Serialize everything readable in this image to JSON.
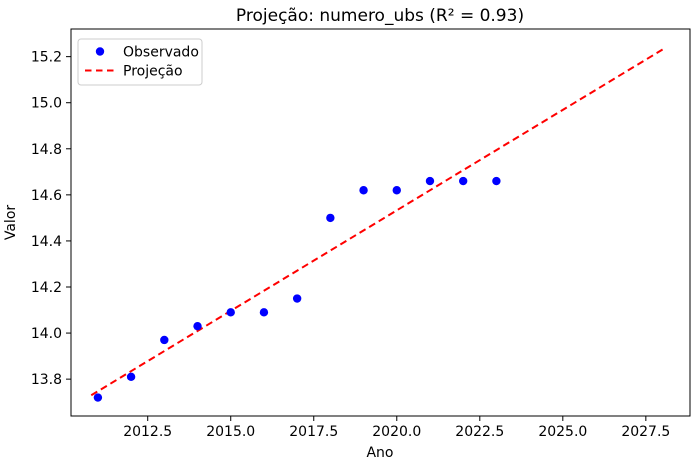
{
  "chart_data": {
    "type": "scatter",
    "title": "Projeção: numero_ubs (R² = 0.93)",
    "xlabel": "Ano",
    "ylabel": "Valor",
    "xlim": [
      2010.19,
      2028.83
    ],
    "ylim": [
      13.64,
      15.32
    ],
    "xticks": [
      2012.5,
      2015.0,
      2017.5,
      2020.0,
      2022.5,
      2025.0,
      2027.5
    ],
    "yticks": [
      13.8,
      14.0,
      14.2,
      14.4,
      14.6,
      14.8,
      15.0,
      15.2
    ],
    "grid": false,
    "legend_position": "upper left",
    "series": [
      {
        "name": "Observado",
        "kind": "scatter",
        "color": "#0000ff",
        "x": [
          2011,
          2012,
          2013,
          2014,
          2015,
          2016,
          2017,
          2018,
          2019,
          2020,
          2021,
          2022,
          2023
        ],
        "y": [
          13.72,
          13.81,
          13.97,
          14.03,
          14.09,
          14.09,
          14.15,
          14.5,
          14.62,
          14.62,
          14.66,
          14.66,
          14.66
        ]
      },
      {
        "name": "Projeção",
        "kind": "dashed-line",
        "color": "#ff0000",
        "x": [
          2010.8,
          2028.05
        ],
        "y": [
          13.73,
          15.235
        ]
      }
    ],
    "colors": {
      "observed": "#0000ff",
      "projection": "#ff0000",
      "spine": "#000000",
      "legend_border": "#cccccc",
      "background": "#ffffff"
    }
  }
}
